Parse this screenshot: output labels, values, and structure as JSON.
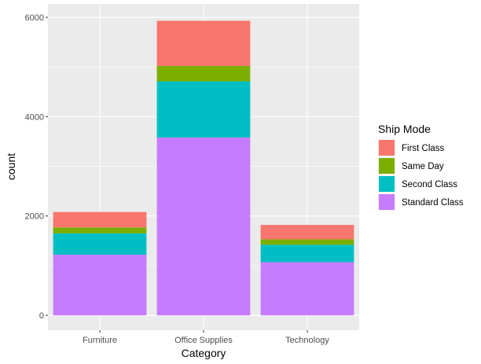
{
  "chart_data": {
    "type": "bar",
    "stacked": true,
    "xlabel": "Category",
    "ylabel": "count",
    "categories": [
      "Furniture",
      "Office Supplies",
      "Technology"
    ],
    "y_ticks": [
      0,
      2000,
      4000,
      6000
    ],
    "ylim": [
      -300,
      6270
    ],
    "grid": true,
    "legend_position": "right",
    "legend_title": "Ship Mode",
    "series": [
      {
        "name": "Standard Class",
        "color": "#C77CFF",
        "values": [
          1220,
          3580,
          1070
        ]
      },
      {
        "name": "Second Class",
        "color": "#00BFC4",
        "values": [
          430,
          1130,
          350
        ]
      },
      {
        "name": "Same Day",
        "color": "#7CAE00",
        "values": [
          120,
          310,
          110
        ]
      },
      {
        "name": "First Class",
        "color": "#F8766D",
        "values": [
          310,
          910,
          290
        ]
      }
    ],
    "legend_order": [
      "First Class",
      "Same Day",
      "Second Class",
      "Standard Class"
    ],
    "panel_background": "#EBEBEB",
    "grid_color": "#FFFFFF"
  }
}
